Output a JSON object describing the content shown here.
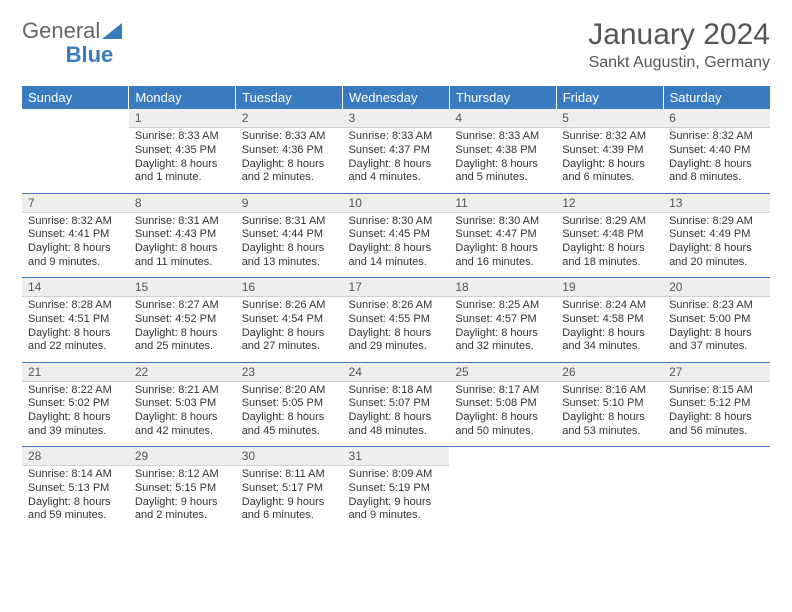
{
  "brand": {
    "part1": "General",
    "part2": "Blue"
  },
  "title": "January 2024",
  "location": "Sankt Augustin, Germany",
  "colors": {
    "header_bg": "#3a7bbf",
    "header_text": "#ffffff",
    "daynum_bg": "#eeeeee",
    "page_bg": "#ffffff",
    "text": "#333333",
    "week_sep": "#3a7bbf"
  },
  "daysOfWeek": [
    "Sunday",
    "Monday",
    "Tuesday",
    "Wednesday",
    "Thursday",
    "Friday",
    "Saturday"
  ],
  "weeks": [
    [
      null,
      {
        "n": "1",
        "sr": "Sunrise: 8:33 AM",
        "ss": "Sunset: 4:35 PM",
        "dl": "Daylight: 8 hours and 1 minute."
      },
      {
        "n": "2",
        "sr": "Sunrise: 8:33 AM",
        "ss": "Sunset: 4:36 PM",
        "dl": "Daylight: 8 hours and 2 minutes."
      },
      {
        "n": "3",
        "sr": "Sunrise: 8:33 AM",
        "ss": "Sunset: 4:37 PM",
        "dl": "Daylight: 8 hours and 4 minutes."
      },
      {
        "n": "4",
        "sr": "Sunrise: 8:33 AM",
        "ss": "Sunset: 4:38 PM",
        "dl": "Daylight: 8 hours and 5 minutes."
      },
      {
        "n": "5",
        "sr": "Sunrise: 8:32 AM",
        "ss": "Sunset: 4:39 PM",
        "dl": "Daylight: 8 hours and 6 minutes."
      },
      {
        "n": "6",
        "sr": "Sunrise: 8:32 AM",
        "ss": "Sunset: 4:40 PM",
        "dl": "Daylight: 8 hours and 8 minutes."
      }
    ],
    [
      {
        "n": "7",
        "sr": "Sunrise: 8:32 AM",
        "ss": "Sunset: 4:41 PM",
        "dl": "Daylight: 8 hours and 9 minutes."
      },
      {
        "n": "8",
        "sr": "Sunrise: 8:31 AM",
        "ss": "Sunset: 4:43 PM",
        "dl": "Daylight: 8 hours and 11 minutes."
      },
      {
        "n": "9",
        "sr": "Sunrise: 8:31 AM",
        "ss": "Sunset: 4:44 PM",
        "dl": "Daylight: 8 hours and 13 minutes."
      },
      {
        "n": "10",
        "sr": "Sunrise: 8:30 AM",
        "ss": "Sunset: 4:45 PM",
        "dl": "Daylight: 8 hours and 14 minutes."
      },
      {
        "n": "11",
        "sr": "Sunrise: 8:30 AM",
        "ss": "Sunset: 4:47 PM",
        "dl": "Daylight: 8 hours and 16 minutes."
      },
      {
        "n": "12",
        "sr": "Sunrise: 8:29 AM",
        "ss": "Sunset: 4:48 PM",
        "dl": "Daylight: 8 hours and 18 minutes."
      },
      {
        "n": "13",
        "sr": "Sunrise: 8:29 AM",
        "ss": "Sunset: 4:49 PM",
        "dl": "Daylight: 8 hours and 20 minutes."
      }
    ],
    [
      {
        "n": "14",
        "sr": "Sunrise: 8:28 AM",
        "ss": "Sunset: 4:51 PM",
        "dl": "Daylight: 8 hours and 22 minutes."
      },
      {
        "n": "15",
        "sr": "Sunrise: 8:27 AM",
        "ss": "Sunset: 4:52 PM",
        "dl": "Daylight: 8 hours and 25 minutes."
      },
      {
        "n": "16",
        "sr": "Sunrise: 8:26 AM",
        "ss": "Sunset: 4:54 PM",
        "dl": "Daylight: 8 hours and 27 minutes."
      },
      {
        "n": "17",
        "sr": "Sunrise: 8:26 AM",
        "ss": "Sunset: 4:55 PM",
        "dl": "Daylight: 8 hours and 29 minutes."
      },
      {
        "n": "18",
        "sr": "Sunrise: 8:25 AM",
        "ss": "Sunset: 4:57 PM",
        "dl": "Daylight: 8 hours and 32 minutes."
      },
      {
        "n": "19",
        "sr": "Sunrise: 8:24 AM",
        "ss": "Sunset: 4:58 PM",
        "dl": "Daylight: 8 hours and 34 minutes."
      },
      {
        "n": "20",
        "sr": "Sunrise: 8:23 AM",
        "ss": "Sunset: 5:00 PM",
        "dl": "Daylight: 8 hours and 37 minutes."
      }
    ],
    [
      {
        "n": "21",
        "sr": "Sunrise: 8:22 AM",
        "ss": "Sunset: 5:02 PM",
        "dl": "Daylight: 8 hours and 39 minutes."
      },
      {
        "n": "22",
        "sr": "Sunrise: 8:21 AM",
        "ss": "Sunset: 5:03 PM",
        "dl": "Daylight: 8 hours and 42 minutes."
      },
      {
        "n": "23",
        "sr": "Sunrise: 8:20 AM",
        "ss": "Sunset: 5:05 PM",
        "dl": "Daylight: 8 hours and 45 minutes."
      },
      {
        "n": "24",
        "sr": "Sunrise: 8:18 AM",
        "ss": "Sunset: 5:07 PM",
        "dl": "Daylight: 8 hours and 48 minutes."
      },
      {
        "n": "25",
        "sr": "Sunrise: 8:17 AM",
        "ss": "Sunset: 5:08 PM",
        "dl": "Daylight: 8 hours and 50 minutes."
      },
      {
        "n": "26",
        "sr": "Sunrise: 8:16 AM",
        "ss": "Sunset: 5:10 PM",
        "dl": "Daylight: 8 hours and 53 minutes."
      },
      {
        "n": "27",
        "sr": "Sunrise: 8:15 AM",
        "ss": "Sunset: 5:12 PM",
        "dl": "Daylight: 8 hours and 56 minutes."
      }
    ],
    [
      {
        "n": "28",
        "sr": "Sunrise: 8:14 AM",
        "ss": "Sunset: 5:13 PM",
        "dl": "Daylight: 8 hours and 59 minutes."
      },
      {
        "n": "29",
        "sr": "Sunrise: 8:12 AM",
        "ss": "Sunset: 5:15 PM",
        "dl": "Daylight: 9 hours and 2 minutes."
      },
      {
        "n": "30",
        "sr": "Sunrise: 8:11 AM",
        "ss": "Sunset: 5:17 PM",
        "dl": "Daylight: 9 hours and 6 minutes."
      },
      {
        "n": "31",
        "sr": "Sunrise: 8:09 AM",
        "ss": "Sunset: 5:19 PM",
        "dl": "Daylight: 9 hours and 9 minutes."
      },
      null,
      null,
      null
    ]
  ]
}
